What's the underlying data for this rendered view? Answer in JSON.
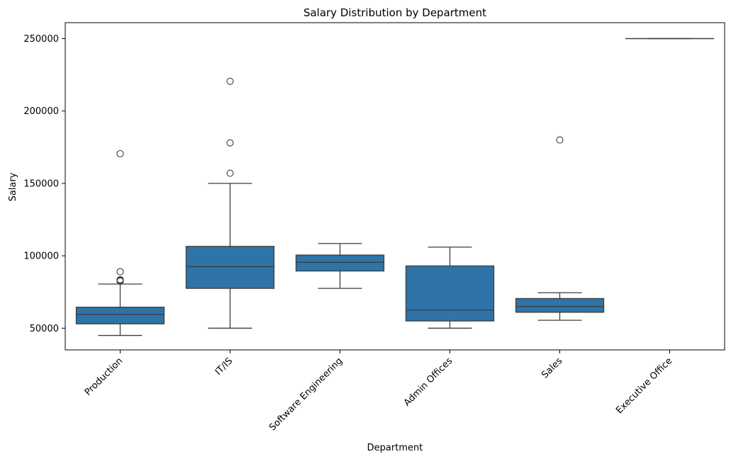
{
  "chart_data": {
    "type": "box",
    "title": "Salary Distribution by Department",
    "xlabel": "Department",
    "ylabel": "Salary",
    "ylim": [
      35000,
      261000
    ],
    "yticks": [
      50000,
      100000,
      150000,
      200000,
      250000
    ],
    "ytick_labels": [
      "50000",
      "100000",
      "150000",
      "200000",
      "250000"
    ],
    "grid": false,
    "legend": "none",
    "categories": [
      "Production",
      "IT/IS",
      "Software Engineering",
      "Admin Offices",
      "Sales",
      "Executive Office"
    ],
    "boxes": [
      {
        "category": "Production",
        "whisker_low": 45000,
        "q1": 53000,
        "median": 59500,
        "q3": 64500,
        "whisker_high": 80500,
        "outliers": [
          82500,
          83000,
          83500,
          89000,
          170500
        ]
      },
      {
        "category": "IT/IS",
        "whisker_low": 50000,
        "q1": 77500,
        "median": 92500,
        "q3": 106500,
        "whisker_high": 150000,
        "outliers": [
          157000,
          178000,
          220500
        ]
      },
      {
        "category": "Software Engineering",
        "whisker_low": 77500,
        "q1": 89500,
        "median": 95500,
        "q3": 100500,
        "whisker_high": 108500,
        "outliers": []
      },
      {
        "category": "Admin Offices",
        "whisker_low": 50000,
        "q1": 55000,
        "median": 62500,
        "q3": 93000,
        "whisker_high": 106000,
        "outliers": []
      },
      {
        "category": "Sales",
        "whisker_low": 55500,
        "q1": 61000,
        "median": 65000,
        "q3": 70500,
        "whisker_high": 74500,
        "outliers": [
          180000
        ]
      },
      {
        "category": "Executive Office",
        "whisker_low": 250000,
        "q1": 250000,
        "median": 250000,
        "q3": 250000,
        "whisker_high": 250000,
        "outliers": []
      }
    ],
    "colors": {
      "box_fill": "#2f74a8",
      "line": "#3d3d3d",
      "axis": "#000000"
    }
  }
}
